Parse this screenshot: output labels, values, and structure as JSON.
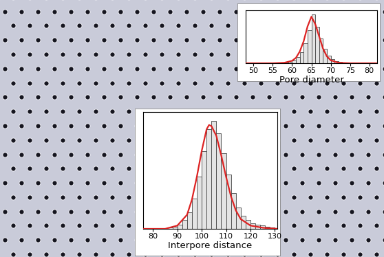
{
  "chart_data": [
    {
      "type": "histogram",
      "x_label": "Pore diameter",
      "bins": [
        50,
        51,
        52,
        53,
        54,
        55,
        56,
        57,
        58,
        59,
        60,
        61,
        62,
        63,
        64,
        65,
        66,
        67,
        68,
        69,
        70,
        71,
        72,
        73,
        74,
        75,
        76,
        77,
        78
      ],
      "counts": [
        1,
        0,
        1,
        0,
        1,
        0,
        1,
        1,
        2,
        3,
        6,
        12,
        22,
        40,
        68,
        100,
        75,
        50,
        30,
        15,
        8,
        4,
        3,
        2,
        1,
        1,
        0,
        1
      ],
      "color": "#e4e4e4",
      "fit": {
        "x": [
          48,
          55,
          58,
          60,
          61,
          62,
          63,
          64,
          65,
          66,
          67,
          68,
          69,
          70,
          72,
          75,
          82
        ],
        "values": [
          0,
          0,
          1,
          5,
          11,
          24,
          45,
          75,
          95,
          80,
          55,
          30,
          14,
          6,
          1,
          0,
          0
        ],
        "color": "#dd2222"
      },
      "xlim": [
        48,
        82
      ],
      "xticks": [
        50,
        55,
        60,
        65,
        70,
        75,
        80
      ],
      "ylim": [
        0,
        108
      ],
      "tick_labels": "x"
    },
    {
      "type": "histogram",
      "x_label": "Interpore distance",
      "bins": [
        86,
        88,
        90,
        92,
        94,
        96,
        98,
        100,
        102,
        104,
        106,
        108,
        110,
        112,
        114,
        116,
        118,
        120,
        122,
        124,
        126,
        128,
        130
      ],
      "counts": [
        1,
        2,
        4,
        8,
        15,
        28,
        48,
        72,
        92,
        100,
        88,
        70,
        50,
        33,
        20,
        12,
        8,
        5,
        4,
        3,
        2,
        1
      ],
      "color": "#e4e4e4",
      "fit": {
        "x": [
          76,
          85,
          90,
          94,
          96,
          98,
          100,
          102,
          103,
          104,
          106,
          108,
          110,
          112,
          114,
          116,
          120,
          125,
          131
        ],
        "values": [
          0,
          0,
          3,
          13,
          27,
          48,
          72,
          92,
          96,
          95,
          86,
          68,
          48,
          30,
          17,
          9,
          3,
          1,
          0
        ],
        "color": "#dd2222"
      },
      "xlim": [
        76,
        131
      ],
      "xticks": [
        80,
        90,
        100,
        110,
        120,
        130
      ],
      "ylim": [
        0,
        108
      ],
      "tick_labels": "x"
    }
  ]
}
